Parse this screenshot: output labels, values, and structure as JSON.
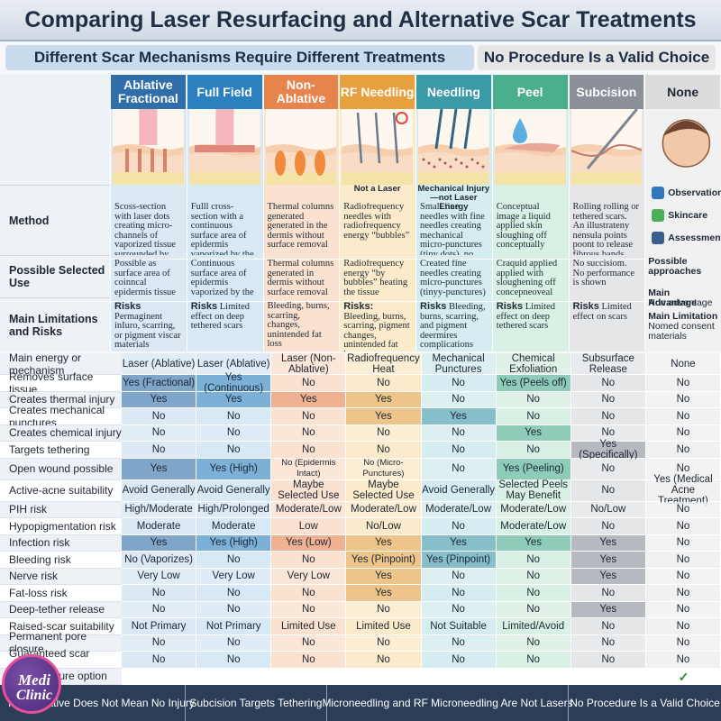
{
  "title": "Comparing Laser Resurfacing and Alternative Scar Treatments",
  "banners": [
    "Different Scar Mechanisms Require Different Treatments",
    "No Procedure Is a Valid Choice"
  ],
  "columns": [
    {
      "name": "Ablative Fractional",
      "color": "#2f6ea8",
      "tint": "#dce8f4"
    },
    {
      "name": "Full Field",
      "color": "#2b80bf",
      "tint": "#d8e9f6"
    },
    {
      "name": "Non-Ablative",
      "color": "#e7844c",
      "tint": "#fbe1d0"
    },
    {
      "name": "RF Needling",
      "color": "#e6a13e",
      "tint": "#fcebca",
      "caption": "Not a Laser"
    },
    {
      "name": "Needling",
      "color": "#3b9aa8",
      "tint": "#d5edf0",
      "caption": "Mechanical Injury—not Laser Energy"
    },
    {
      "name": "Peel",
      "color": "#4aae8e",
      "tint": "#d9f0e4"
    },
    {
      "name": "Subcision",
      "color": "#8b9098",
      "tint": "#e5e6e8"
    },
    {
      "name": "None",
      "color": "#dcdcdc",
      "tint": "#f1f1f1"
    }
  ],
  "upper_rows": [
    {
      "label": "Method",
      "cells": [
        {
          "text": "Scoss-section with laser dots creating micro-channels of vaporized tissue surrounded by untreated skin"
        },
        {
          "text": "Fulll cross-section with a continuous surface area of epidermis vaporized by the laser"
        },
        {
          "text": "Thermal columns generated generated in the dermis without surface removal"
        },
        {
          "text": "Radiofrequency needles with radiofrequency energy “bubbles”"
        },
        {
          "text": "Small fine needles with fine needles creating mechanical micro-punctures (tiny dots), no heat"
        },
        {
          "text": "Conceptual image a liquid applied skin sloughing off conceptually"
        },
        {
          "text": "Rolling rolling or tethered scars. An illustrateny nensula points poont to release fibrous bands"
        }
      ]
    },
    {
      "label": "Possible Selected Use",
      "cells": [
        {
          "text": "Possible as surface area of coinncal epidermis tissue (lassous surrounted"
        },
        {
          "text": "Continuous surface area of epidermis vaporized by the laser"
        },
        {
          "text": "Thermal columns generated in dermis without surface removal"
        },
        {
          "text": "Radiofrequency energy “by bubbles” heating the tissue"
        },
        {
          "text": "Created fine needles creating micro-punctures (tinyy-punctures)"
        },
        {
          "text": "Craquid applied applied with sloughening off concepneoveal peel"
        },
        {
          "text": "No succisiom. No performance is shown"
        }
      ]
    },
    {
      "label": "Main Limitations and Risks",
      "cells": [
        {
          "head": "Risks",
          "text": "Permaginent inIuro, scarring, or pigment viscar materials"
        },
        {
          "head": "Risks",
          "text": "Limited effect on deep tethered scars"
        },
        {
          "text": "Bleeding, burns, scarring, changes, unintended fat loss"
        },
        {
          "head": "Risks:",
          "text": "Bleeding, burns, scarring, pigment changes, unintended fat loss, nerve-related complications"
        },
        {
          "head": "Risks",
          "text": "Bleeding, burns, scarring, and pigment deermires complications"
        },
        {
          "head": "Risks",
          "text": "Limited effect on deep tethered scars"
        },
        {
          "head": "Risks",
          "text": "Limited effect on scars"
        }
      ]
    }
  ],
  "none_panel": {
    "icons": [
      "Observation",
      "Skincare",
      "Assessment"
    ],
    "approaches": "Possible approaches",
    "advantage_head": "Main Advantage",
    "advantage": "Non advantage",
    "limitation_head": "Main Limitation",
    "limitation": "Nomed consent materials"
  },
  "table": {
    "rows": [
      {
        "label": "Main energy or mechanism",
        "cells": [
          "Laser (Ablative)",
          "Laser (Ablative)",
          "Laser (Non-Ablative)",
          "Radiofrequency Heat",
          "Mechanical Punctures",
          "Chemical Exfoliation",
          "Subsurface Release",
          "None"
        ]
      },
      {
        "label": "Removes surface tissue",
        "cells": [
          "Yes (Fractional)",
          "Yes (Continuous)",
          "No",
          "No",
          "No",
          "Yes (Peels off)",
          "No",
          "No"
        ]
      },
      {
        "label": "Creates thermal injury",
        "cells": [
          "Yes",
          "Yes",
          "Yes",
          "Yes",
          "No",
          "No",
          "No",
          "No"
        ]
      },
      {
        "label": "Creates mechanical punctures",
        "cells": [
          "No",
          "No",
          "No",
          "Yes",
          "Yes",
          "No",
          "No",
          "No"
        ]
      },
      {
        "label": "Creates chemical injury",
        "cells": [
          "No",
          "No",
          "No",
          "No",
          "No",
          "Yes",
          "No",
          "No"
        ]
      },
      {
        "label": "Targets tethering",
        "cells": [
          "No",
          "No",
          "No",
          "No",
          "No",
          "No",
          "Yes (Specifically)",
          "No"
        ]
      },
      {
        "label": "Open wound possible",
        "cells": [
          "Yes",
          "Yes (High)",
          "No (Epidermis Intact)",
          "No (Micro-Punctures)",
          "No",
          "Yes (Peeling)",
          "No",
          "No"
        ]
      },
      {
        "label": "Active-acne suitability",
        "cells": [
          "Avoid Generally",
          "Avoid Generally",
          "Maybe Selected Use",
          "Maybe Selected Use",
          "Avoid Generally",
          "Selected Peels May Benefit",
          "No",
          "Yes (Medical Acne Treatment)"
        ]
      },
      {
        "label": "PIH risk",
        "cells": [
          "High/Moderate",
          "High/Prolonged",
          "Moderate/Low",
          "Moderate/Low",
          "Moderate/Low",
          "Moderate/Low",
          "No/Low",
          "No"
        ]
      },
      {
        "label": "Hypopigmentation risk",
        "cells": [
          "Moderate",
          "Moderate",
          "Low",
          "No/Low",
          "No",
          "Moderate/Low",
          "No",
          "No"
        ]
      },
      {
        "label": "Infection risk",
        "cells": [
          "Yes",
          "Yes (High)",
          "Yes (Low)",
          "Yes",
          "Yes",
          "Yes",
          "Yes",
          "No"
        ]
      },
      {
        "label": "Bleeding risk",
        "cells": [
          "No (Vaporizes)",
          "No",
          "No",
          "Yes (Pinpoint)",
          "Yes (Pinpoint)",
          "No",
          "Yes",
          "No"
        ]
      },
      {
        "label": "Nerve risk",
        "cells": [
          "Very Low",
          "Very Low",
          "Very Low",
          "Yes",
          "No",
          "No",
          "Yes",
          "No"
        ]
      },
      {
        "label": "Fat-loss risk",
        "cells": [
          "No",
          "No",
          "No",
          "Yes",
          "No",
          "No",
          "No",
          "No"
        ]
      },
      {
        "label": "Deep-tether release",
        "cells": [
          "No",
          "No",
          "No",
          "No",
          "No",
          "No",
          "Yes",
          "No"
        ]
      },
      {
        "label": "Raised-scar suitability",
        "cells": [
          "Not Primary",
          "Not Primary",
          "Limited Use",
          "Limited Use",
          "Not Suitable",
          "Limited/Avoid",
          "No",
          "No"
        ]
      },
      {
        "label": "Permanent pore closure",
        "cells": [
          "No",
          "No",
          "No",
          "No",
          "No",
          "No",
          "No",
          "No"
        ]
      },
      {
        "label": "Guaranteed scar removal",
        "cells": [
          "No",
          "No",
          "No",
          "No",
          "No",
          "No",
          "No",
          "No"
        ]
      }
    ]
  },
  "no_procedure": {
    "label": "No procedure option",
    "mark": "✓"
  },
  "footer": [
    "Non-Ablative Does Not Mean No Injury",
    "Subcision Targets Tethering",
    "Microneedling and RF Microneedling Are Not Lasers",
    "No Procedure Is a Valid Choice"
  ],
  "logo": [
    "Medi",
    "Clinic"
  ]
}
